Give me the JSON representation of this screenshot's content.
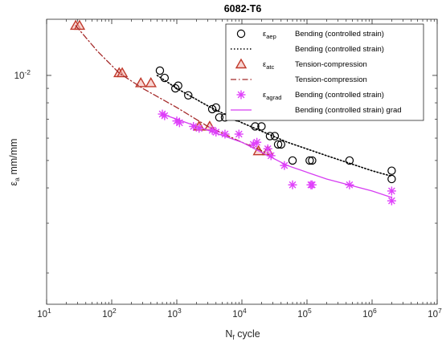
{
  "chart_data": {
    "type": "scatter",
    "title": "6082-T6",
    "xlabel": {
      "main": "N",
      "sub": "f",
      "rest": " cycle"
    },
    "ylabel": {
      "main": "ε",
      "sub": "a",
      "rest": " mm/mm"
    },
    "xscale": "log",
    "yscale": "log",
    "xlim": [
      10,
      10000000
    ],
    "ylim": [
      0.00155,
      0.0158
    ],
    "x_ticks": [
      {
        "value": 10,
        "base": "10",
        "exp": "1"
      },
      {
        "value": 100,
        "base": "10",
        "exp": "2"
      },
      {
        "value": 1000,
        "base": "10",
        "exp": "3"
      },
      {
        "value": 10000,
        "base": "10",
        "exp": "4"
      },
      {
        "value": 100000,
        "base": "10",
        "exp": "5"
      },
      {
        "value": 1000000,
        "base": "10",
        "exp": "6"
      },
      {
        "value": 10000000,
        "base": "10",
        "exp": "7"
      }
    ],
    "y_ticks": [
      {
        "value": 0.01,
        "base": "10",
        "exp": "-2"
      }
    ],
    "grid": false,
    "legend_position": "top-right",
    "series": [
      {
        "legend_symbol": "ε",
        "legend_sub": "aep",
        "name": "Bending (controlled strain)",
        "kind": "points",
        "marker": "circle",
        "color": "#000000",
        "points": [
          [
            550,
            0.0104
          ],
          [
            650,
            0.0098
          ],
          [
            950,
            0.009
          ],
          [
            1050,
            0.0092
          ],
          [
            1500,
            0.0085
          ],
          [
            3500,
            0.0076
          ],
          [
            4000,
            0.0077
          ],
          [
            4500,
            0.0071
          ],
          [
            5500,
            0.0071
          ],
          [
            8500,
            0.0071
          ],
          [
            16000,
            0.0066
          ],
          [
            20000,
            0.0066
          ],
          [
            27000,
            0.0061
          ],
          [
            32000,
            0.0061
          ],
          [
            36000,
            0.0057
          ],
          [
            40000,
            0.0057
          ],
          [
            60000,
            0.005
          ],
          [
            110000,
            0.005
          ],
          [
            120000,
            0.005
          ],
          [
            450000,
            0.005
          ],
          [
            2000000,
            0.0046
          ],
          [
            2000000,
            0.0043
          ]
        ]
      },
      {
        "name": "Bending (controlled strain)",
        "kind": "line",
        "style": "dotted",
        "color": "#000000",
        "points": [
          [
            500,
            0.01
          ],
          [
            1000,
            0.009
          ],
          [
            3000,
            0.0078
          ],
          [
            10000,
            0.0068
          ],
          [
            50000,
            0.0058
          ],
          [
            200000,
            0.0052
          ],
          [
            1000000,
            0.0046
          ],
          [
            2000000,
            0.0044
          ]
        ]
      },
      {
        "legend_symbol": "ε",
        "legend_sub": "atc",
        "name": "Tension-compression",
        "kind": "points",
        "marker": "triangle",
        "color": "#c0392b",
        "fill": "#f2b5ae",
        "points": [
          [
            28,
            0.015
          ],
          [
            32,
            0.015
          ],
          [
            130,
            0.0102
          ],
          [
            145,
            0.0102
          ],
          [
            280,
            0.0094
          ],
          [
            400,
            0.0094
          ],
          [
            2200,
            0.0066
          ],
          [
            3200,
            0.0066
          ],
          [
            18000,
            0.0054
          ],
          [
            25000,
            0.0054
          ]
        ]
      },
      {
        "name": "Tension-compression",
        "kind": "line",
        "style": "dashdot",
        "color": "#a52a2a",
        "points": [
          [
            28,
            0.015
          ],
          [
            60,
            0.0122
          ],
          [
            130,
            0.0102
          ],
          [
            300,
            0.009
          ],
          [
            1000,
            0.0077
          ],
          [
            3000,
            0.0066
          ],
          [
            10000,
            0.0058
          ],
          [
            25000,
            0.0053
          ]
        ]
      },
      {
        "legend_symbol": "ε",
        "legend_sub": "agrad",
        "name": "Bending (controlled strain)",
        "kind": "points",
        "marker": "asterisk",
        "color": "#e040fb",
        "points": [
          [
            600,
            0.0073
          ],
          [
            650,
            0.0072
          ],
          [
            1000,
            0.0069
          ],
          [
            1100,
            0.0068
          ],
          [
            1800,
            0.0066
          ],
          [
            2200,
            0.0065
          ],
          [
            3500,
            0.0064
          ],
          [
            4000,
            0.0063
          ],
          [
            5500,
            0.0062
          ],
          [
            9000,
            0.0062
          ],
          [
            15000,
            0.0057
          ],
          [
            17000,
            0.0058
          ],
          [
            25000,
            0.0055
          ],
          [
            28000,
            0.0052
          ],
          [
            45000,
            0.0048
          ],
          [
            60000,
            0.0041
          ],
          [
            115000,
            0.0041
          ],
          [
            120000,
            0.0041
          ],
          [
            450000,
            0.0041
          ],
          [
            2000000,
            0.0039
          ],
          [
            2000000,
            0.0036
          ]
        ]
      },
      {
        "name": "Bending (controlled strain) grad",
        "kind": "line",
        "style": "solid",
        "color": "#d63df2",
        "points": [
          [
            600,
            0.0073
          ],
          [
            1000,
            0.007
          ],
          [
            3000,
            0.0064
          ],
          [
            10000,
            0.0058
          ],
          [
            50000,
            0.0048
          ],
          [
            200000,
            0.0043
          ],
          [
            1000000,
            0.0039
          ],
          [
            2000000,
            0.0037
          ]
        ]
      }
    ]
  }
}
